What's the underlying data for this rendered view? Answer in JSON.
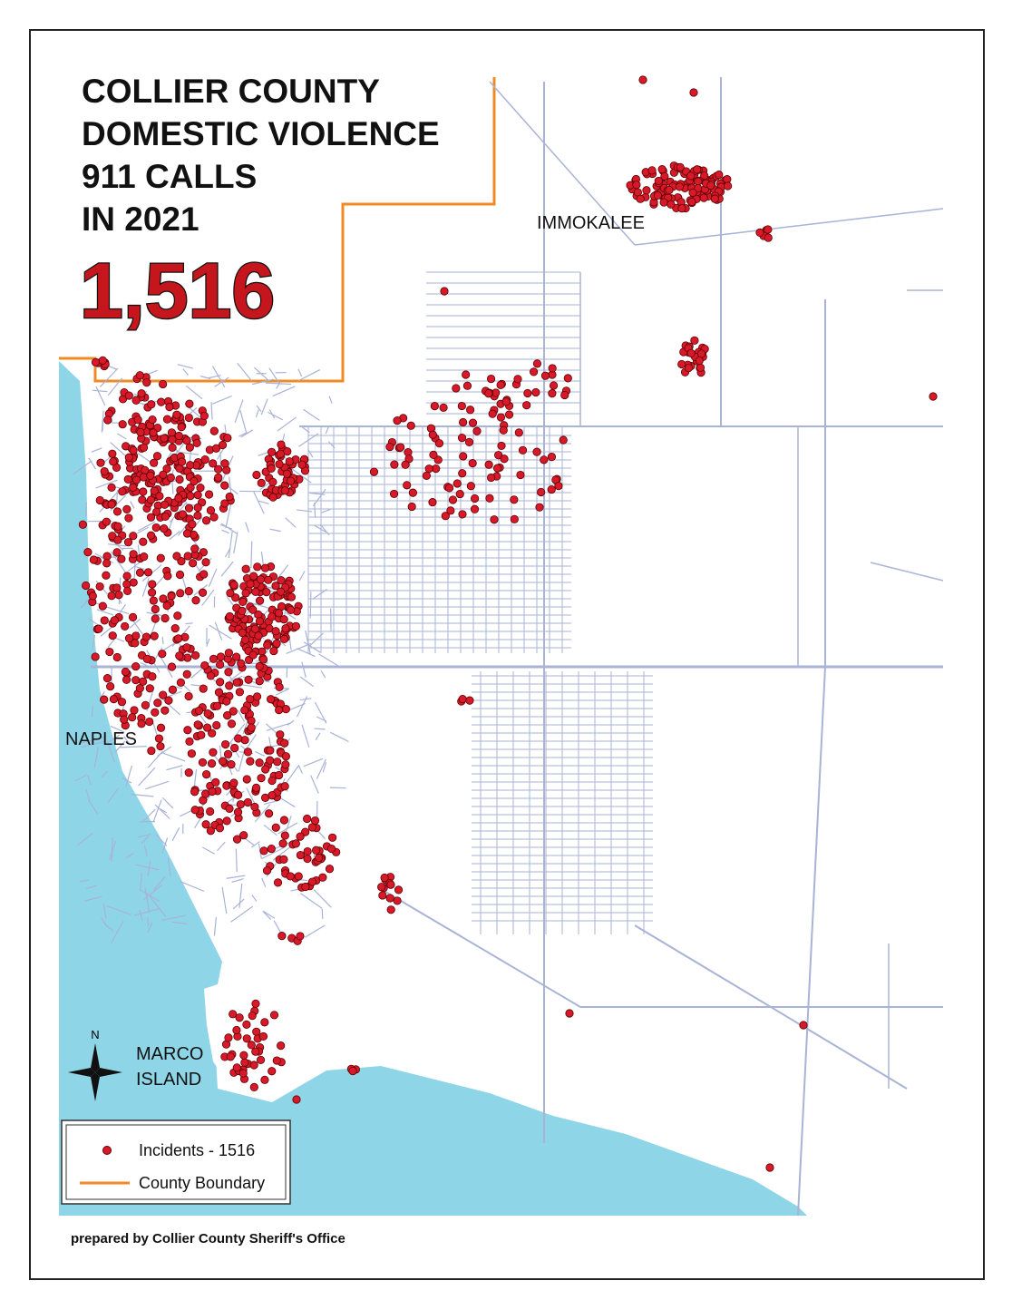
{
  "title_lines": [
    "COLLIER COUNTY",
    "DOMESTIC VIOLENCE",
    "911 CALLS",
    "IN 2021"
  ],
  "total": "1,516",
  "places": [
    "IMMOKALEE",
    "NAPLES",
    "MARCO",
    "ISLAND"
  ],
  "compass": "N",
  "legend": [
    {
      "label": "Incidents - 1516"
    },
    {
      "label": "County Boundary"
    }
  ],
  "credit": "prepared by Collier County Sheriff's Office"
}
